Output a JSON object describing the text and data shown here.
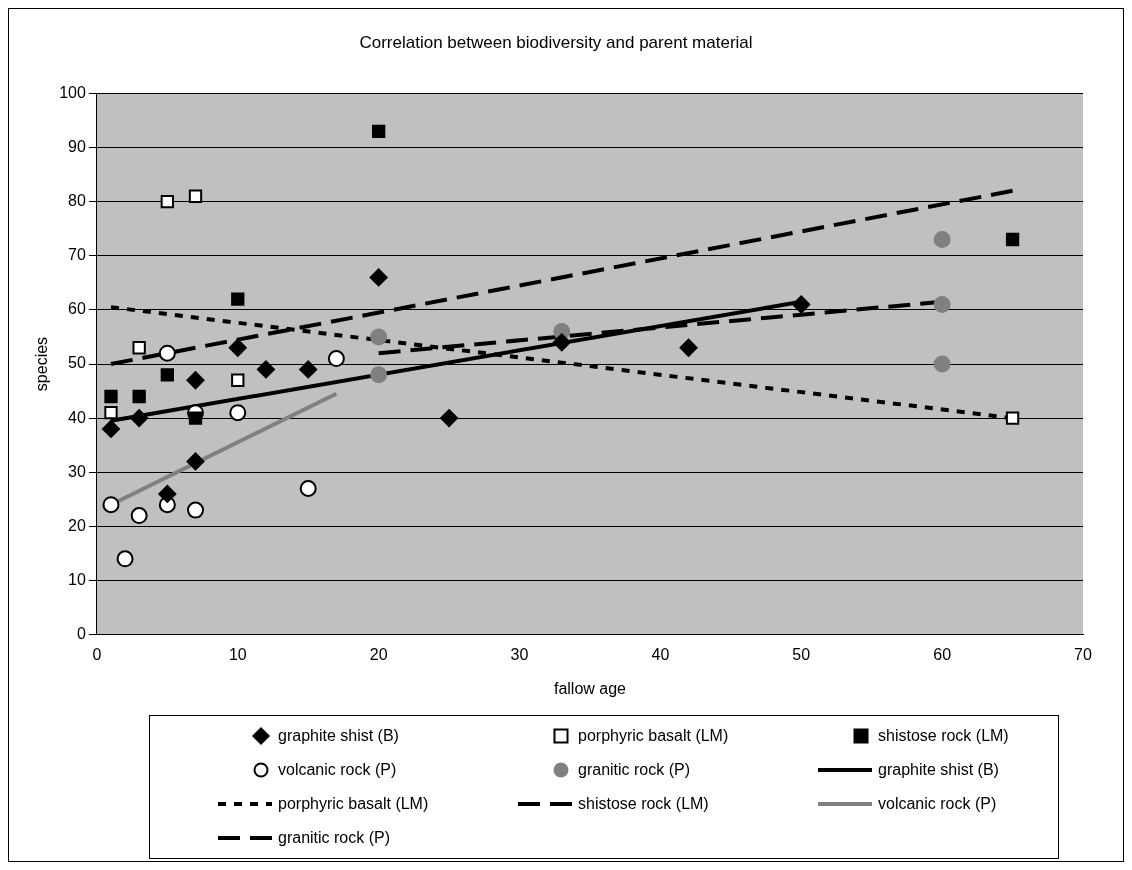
{
  "chart_data": {
    "type": "scatter",
    "title": "Correlation between biodiversity and parent material",
    "xlabel": "fallow age",
    "ylabel": "species",
    "xlim": [
      0,
      70
    ],
    "xticks": [
      0,
      10,
      20,
      30,
      40,
      50,
      60,
      70
    ],
    "ylim": [
      0,
      100
    ],
    "yticks": [
      0,
      10,
      20,
      30,
      40,
      50,
      60,
      70,
      80,
      90,
      100
    ],
    "grid": "y",
    "legend": "bottom",
    "series": [
      {
        "name": "graphite shist (B)",
        "marker": "diamond",
        "color": "#000000",
        "x": [
          1,
          3,
          5,
          7,
          7,
          10,
          12,
          15,
          20,
          25,
          33,
          42,
          50
        ],
        "values": [
          38,
          40,
          26,
          47,
          32,
          53,
          49,
          49,
          66,
          40,
          54,
          53,
          61
        ]
      },
      {
        "name": "porphyric basalt (LM)",
        "marker": "square",
        "color": "#ffffff",
        "x": [
          1,
          3,
          5,
          7,
          10,
          65
        ],
        "values": [
          41,
          53,
          80,
          81,
          47,
          40
        ]
      },
      {
        "name": "shistose rock (LM)",
        "marker": "square",
        "color": "#000000",
        "x": [
          1,
          3,
          5,
          7,
          10,
          20,
          65
        ],
        "values": [
          44,
          44,
          48,
          40,
          62,
          93,
          73
        ]
      },
      {
        "name": "volcanic rock (P)",
        "marker": "circle",
        "color": "#ffffff",
        "x": [
          1,
          2,
          3,
          5,
          5,
          7,
          7,
          10,
          15,
          17
        ],
        "values": [
          24,
          14,
          22,
          24,
          52,
          23,
          41,
          41,
          27,
          51
        ]
      },
      {
        "name": "granitic rock (P)",
        "marker": "circle",
        "color": "#808080",
        "x": [
          20,
          20,
          33,
          60,
          60,
          60
        ],
        "values": [
          55,
          48,
          56,
          73,
          61,
          50
        ]
      },
      {
        "name": "graphite shist (B)",
        "type": "line",
        "line_style": "solid",
        "color": "#000000",
        "x": [
          1,
          50
        ],
        "values": [
          39.5,
          61.5
        ]
      },
      {
        "name": "porphyric basalt (LM)",
        "type": "line",
        "line_style": "dotted",
        "color": "#000000",
        "x": [
          1,
          65
        ],
        "values": [
          60.5,
          40
        ]
      },
      {
        "name": "shistose rock (LM)",
        "type": "line",
        "line_style": "dashed",
        "color": "#000000",
        "x": [
          1,
          65
        ],
        "values": [
          50,
          82
        ]
      },
      {
        "name": "volcanic rock (P)",
        "type": "line",
        "line_style": "solid",
        "color": "#808080",
        "x": [
          1,
          17
        ],
        "values": [
          24,
          44.5
        ]
      },
      {
        "name": "granitic rock (P)",
        "type": "line",
        "line_style": "dashed",
        "color": "#000000",
        "x": [
          20,
          60
        ],
        "values": [
          52,
          61.5
        ]
      }
    ]
  }
}
